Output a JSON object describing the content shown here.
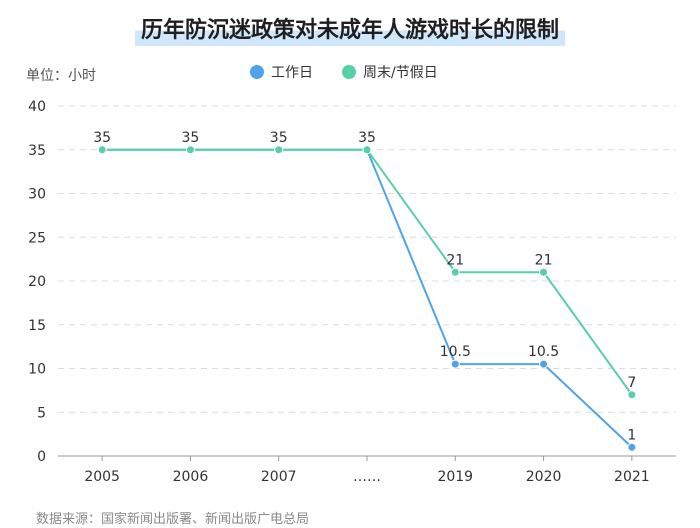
{
  "header": {
    "title": "历年防沉迷政策对未成年人游戏时长的限制"
  },
  "footer": {
    "source": "数据来源：国家新闻出版署、新闻出版广电总局"
  },
  "chart_data": {
    "type": "line",
    "title": "历年防沉迷政策对未成年人游戏时长的限制",
    "unit_label": "单位：小时",
    "xlabel": "",
    "ylabel": "",
    "categories": [
      "2005",
      "2006",
      "2007",
      "……",
      "2019",
      "2020",
      "2021"
    ],
    "ylim": [
      0,
      40
    ],
    "yticks": [
      0,
      5,
      10,
      15,
      20,
      25,
      30,
      35,
      40
    ],
    "grid": true,
    "legend_position": "top-center",
    "series": [
      {
        "name": "工作日",
        "color": "#4fa3e8",
        "values": [
          35,
          35,
          35,
          35,
          10.5,
          10.5,
          1
        ]
      },
      {
        "name": "周末/节假日",
        "color": "#55d1a4",
        "values": [
          35,
          35,
          35,
          35,
          21,
          21,
          7
        ]
      }
    ]
  }
}
